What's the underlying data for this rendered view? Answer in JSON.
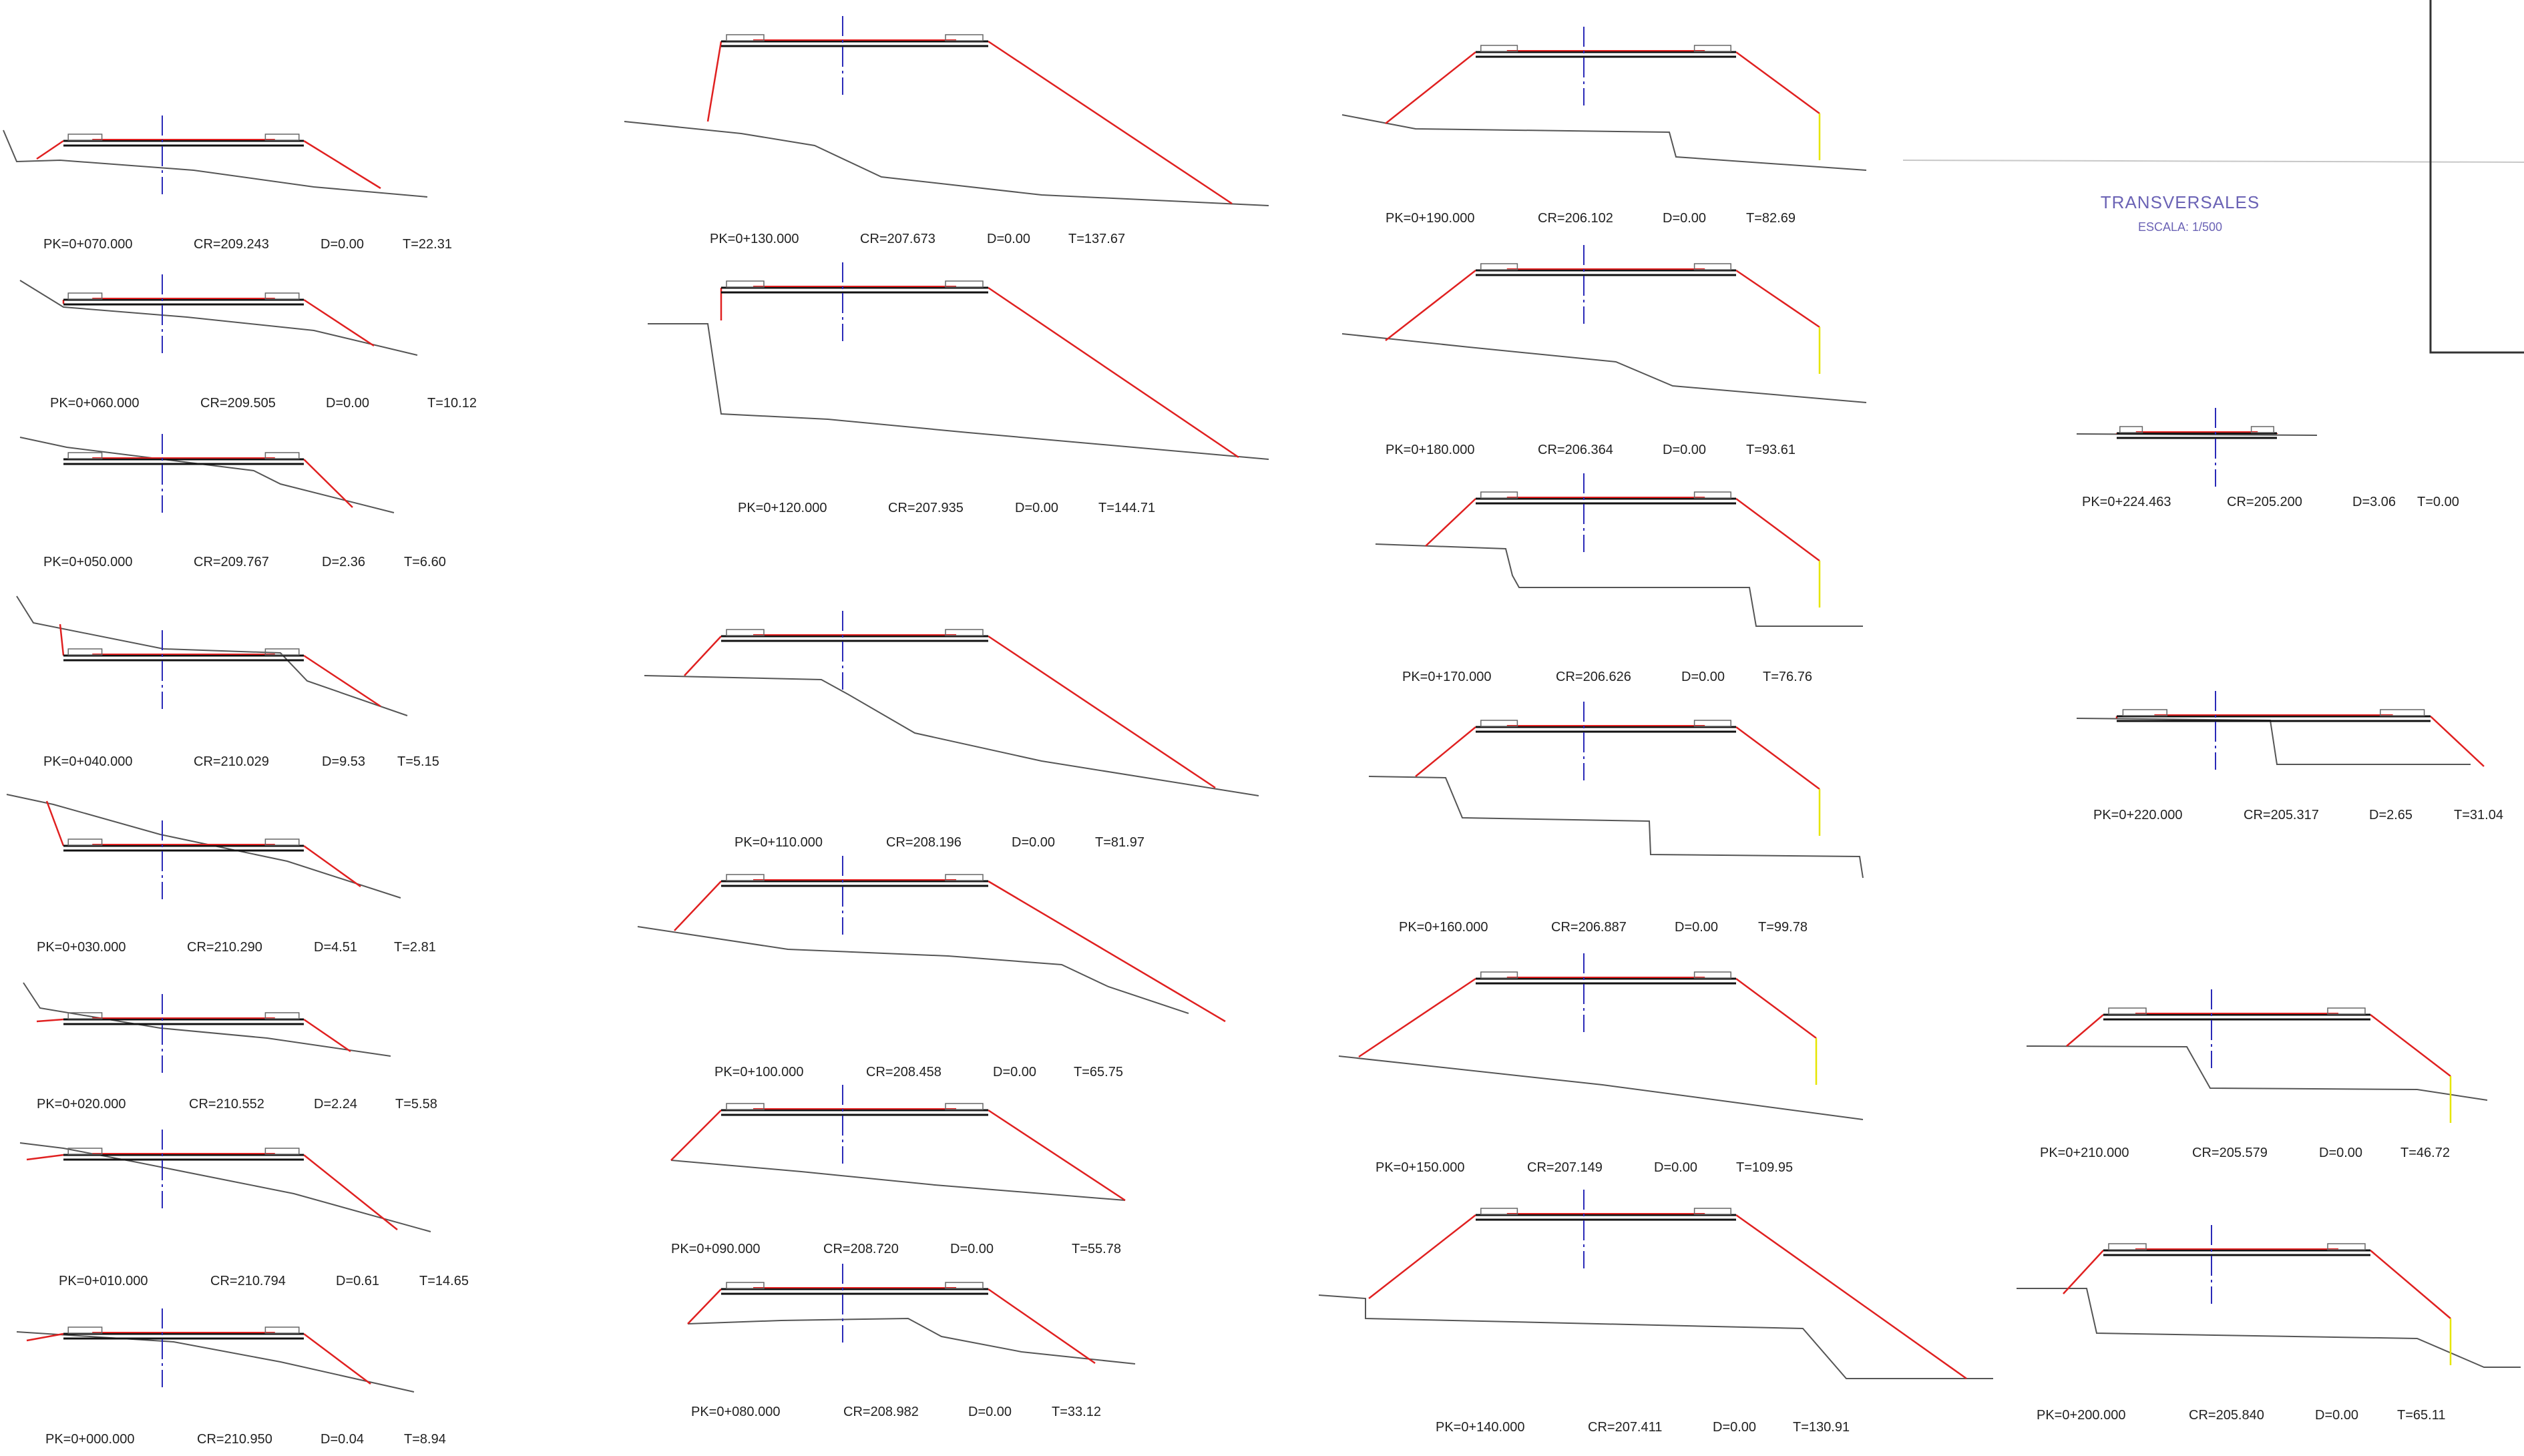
{
  "title": {
    "heading": "TRANSVERSALES",
    "scale": "ESCALA: 1/500"
  },
  "colors": {
    "slope": "#e02020",
    "ground": "#555555",
    "axis": "#2a2ab8",
    "road": "#111111",
    "marker": "#e6e600",
    "frame": "#333333",
    "title": "#6b63b5"
  },
  "sections": [
    {
      "pk": "PK=0+000.000",
      "cr": "CR=210.950",
      "d": "D=0.04",
      "t": "T=8.94"
    },
    {
      "pk": "PK=0+010.000",
      "cr": "CR=210.794",
      "d": "D=0.61",
      "t": "T=14.65"
    },
    {
      "pk": "PK=0+020.000",
      "cr": "CR=210.552",
      "d": "D=2.24",
      "t": "T=5.58"
    },
    {
      "pk": "PK=0+030.000",
      "cr": "CR=210.290",
      "d": "D=4.51",
      "t": "T=2.81"
    },
    {
      "pk": "PK=0+040.000",
      "cr": "CR=210.029",
      "d": "D=9.53",
      "t": "T=5.15"
    },
    {
      "pk": "PK=0+050.000",
      "cr": "CR=209.767",
      "d": "D=2.36",
      "t": "T=6.60"
    },
    {
      "pk": "PK=0+060.000",
      "cr": "CR=209.505",
      "d": "D=0.00",
      "t": "T=10.12"
    },
    {
      "pk": "PK=0+070.000",
      "cr": "CR=209.243",
      "d": "D=0.00",
      "t": "T=22.31"
    },
    {
      "pk": "PK=0+080.000",
      "cr": "CR=208.982",
      "d": "D=0.00",
      "t": "T=33.12"
    },
    {
      "pk": "PK=0+090.000",
      "cr": "CR=208.720",
      "d": "D=0.00",
      "t": "T=55.78"
    },
    {
      "pk": "PK=0+100.000",
      "cr": "CR=208.458",
      "d": "D=0.00",
      "t": "T=65.75"
    },
    {
      "pk": "PK=0+110.000",
      "cr": "CR=208.196",
      "d": "D=0.00",
      "t": "T=81.97"
    },
    {
      "pk": "PK=0+120.000",
      "cr": "CR=207.935",
      "d": "D=0.00",
      "t": "T=144.71"
    },
    {
      "pk": "PK=0+130.000",
      "cr": "CR=207.673",
      "d": "D=0.00",
      "t": "T=137.67"
    },
    {
      "pk": "PK=0+140.000",
      "cr": "CR=207.411",
      "d": "D=0.00",
      "t": "T=130.91"
    },
    {
      "pk": "PK=0+150.000",
      "cr": "CR=207.149",
      "d": "D=0.00",
      "t": "T=109.95"
    },
    {
      "pk": "PK=0+160.000",
      "cr": "CR=206.887",
      "d": "D=0.00",
      "t": "T=99.78"
    },
    {
      "pk": "PK=0+170.000",
      "cr": "CR=206.626",
      "d": "D=0.00",
      "t": "T=76.76"
    },
    {
      "pk": "PK=0+180.000",
      "cr": "CR=206.364",
      "d": "D=0.00",
      "t": "T=93.61"
    },
    {
      "pk": "PK=0+190.000",
      "cr": "CR=206.102",
      "d": "D=0.00",
      "t": "T=82.69"
    },
    {
      "pk": "PK=0+200.000",
      "cr": "CR=205.840",
      "d": "D=0.00",
      "t": "T=65.11"
    },
    {
      "pk": "PK=0+210.000",
      "cr": "CR=205.579",
      "d": "D=0.00",
      "t": "T=46.72"
    },
    {
      "pk": "PK=0+220.000",
      "cr": "CR=205.317",
      "d": "D=2.65",
      "t": "T=31.04"
    },
    {
      "pk": "PK=0+224.463",
      "cr": "CR=205.200",
      "d": "D=3.06",
      "t": "T=0.00"
    }
  ]
}
